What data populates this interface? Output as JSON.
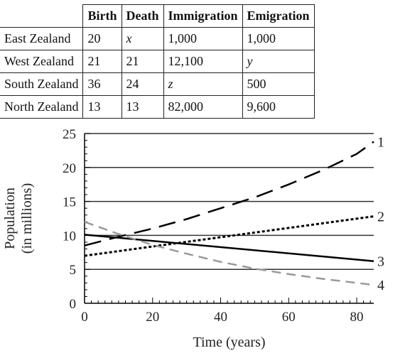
{
  "table": {
    "columns": [
      "Birth",
      "Death",
      "Immigration",
      "Emigration"
    ],
    "rows": [
      {
        "name": "East Zealand",
        "cells": [
          "20",
          "x",
          "1,000",
          "1,000"
        ]
      },
      {
        "name": "West Zealand",
        "cells": [
          "21",
          "21",
          "12,100",
          "y"
        ]
      },
      {
        "name": "South Zealand",
        "cells": [
          "36",
          "24",
          "z",
          "500"
        ]
      },
      {
        "name": "North Zealand",
        "cells": [
          "13",
          "13",
          "82,000",
          "9,600"
        ]
      }
    ]
  },
  "chart_data": {
    "type": "line",
    "xlabel": "Time (years)",
    "ylabel": "Population (in millions)",
    "ylabel_lines": [
      "Population",
      "(in millions)"
    ],
    "xlim": [
      0,
      85
    ],
    "ylim": [
      0,
      25
    ],
    "xticks": [
      0,
      20,
      40,
      60,
      80
    ],
    "yticks": [
      0,
      5,
      10,
      15,
      20,
      25
    ],
    "grid": "horizontal",
    "series": [
      {
        "name": "1",
        "style": "long-dash",
        "color": "#000000",
        "x": [
          0,
          10,
          20,
          30,
          40,
          50,
          60,
          70,
          80,
          85
        ],
        "y": [
          8.5,
          9.8,
          11.0,
          12.4,
          14.0,
          15.6,
          17.5,
          19.6,
          22.0,
          23.8
        ]
      },
      {
        "name": "2",
        "style": "dotted",
        "color": "#000000",
        "x": [
          0,
          85
        ],
        "y": [
          7.0,
          12.8
        ]
      },
      {
        "name": "3",
        "style": "solid",
        "color": "#000000",
        "x": [
          0,
          85
        ],
        "y": [
          10.1,
          6.2
        ]
      },
      {
        "name": "4",
        "style": "dashed",
        "color": "#999999",
        "x": [
          0,
          10,
          20,
          30,
          40,
          50,
          60,
          70,
          80,
          85
        ],
        "y": [
          12.0,
          10.2,
          8.6,
          7.3,
          6.1,
          5.1,
          4.3,
          3.6,
          3.0,
          2.7
        ]
      }
    ]
  }
}
